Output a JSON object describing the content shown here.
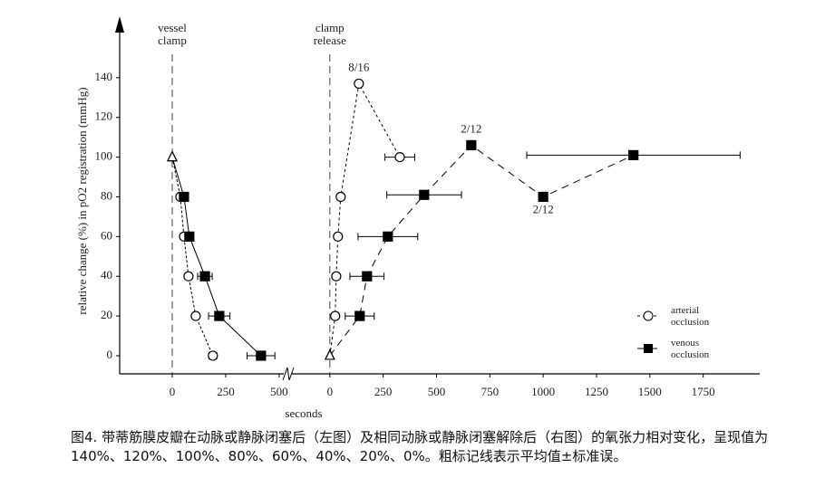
{
  "chart_data": [
    {
      "type": "line",
      "ylabel": "relative change (%) in pO2 registration (mmHg)",
      "annotation": {
        "text": "vessel clamp",
        "x": 0
      },
      "xlim": [
        -233,
        530
      ],
      "xticks": [
        0,
        250,
        500
      ],
      "ylim": [
        -9,
        165
      ],
      "yticks": [
        0,
        20,
        40,
        60,
        80,
        100,
        120,
        140
      ],
      "series": [
        {
          "marker": "circle",
          "first_marker": "triangle",
          "dash": "3 2",
          "color": "#000000",
          "x": [
            0,
            38,
            55,
            76,
            110,
            190
          ],
          "values": [
            100,
            80,
            60,
            40,
            20,
            0
          ],
          "x_err": [
            null,
            12,
            10,
            8,
            10,
            18
          ]
        },
        {
          "marker": "square",
          "first_marker": "triangle",
          "dash": "none",
          "color": "#000000",
          "x": [
            0,
            55,
            80,
            153,
            220,
            415
          ],
          "values": [
            100,
            80,
            60,
            40,
            20,
            0
          ],
          "x_err": [
            null,
            null,
            null,
            34,
            50,
            65
          ]
        }
      ]
    },
    {
      "type": "line",
      "xlabel": "seconds",
      "annotation": {
        "text": "clamp release",
        "x": 0
      },
      "xlim": [
        -131,
        2015
      ],
      "xticks": [
        0,
        250,
        500,
        750,
        1000,
        1250,
        1500,
        1750
      ],
      "ylim": [
        -9,
        165
      ],
      "legend": "lower right",
      "series": [
        {
          "name": "arterial occlusion",
          "marker": "circle",
          "first_marker": "triangle",
          "dash": "3 3",
          "color": "#000000",
          "x": [
            0,
            25,
            30,
            38,
            51,
            136,
            328
          ],
          "values": [
            0,
            20,
            40,
            60,
            80,
            137,
            100
          ],
          "x_err": [
            null,
            null,
            null,
            null,
            null,
            null,
            70
          ],
          "point_labels": [
            null,
            null,
            null,
            null,
            null,
            "8/16",
            null
          ]
        },
        {
          "name": "venous occlusion",
          "marker": "square",
          "first_marker": "triangle",
          "dash": "8 6",
          "color": "#000000",
          "x": [
            0,
            140,
            174,
            272,
            442,
            663,
            1000,
            1423
          ],
          "values": [
            0,
            20,
            40,
            60,
            81,
            106,
            80,
            101
          ],
          "x_err": [
            null,
            68,
            80,
            140,
            175,
            null,
            null,
            500
          ],
          "point_labels": [
            null,
            null,
            null,
            null,
            null,
            "2/12",
            "2/12",
            null
          ]
        }
      ]
    }
  ],
  "caption": "图4. 带蒂筋膜皮瓣在动脉或静脉闭塞后（左图）及相同动脉或静脉闭塞解除后（右图）的氧张力相对变化，呈现值为140%、120%、100%、80%、60%、40%、20%、0%。粗标记线表示平均值±标准误。"
}
